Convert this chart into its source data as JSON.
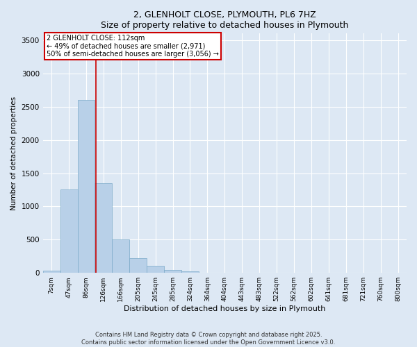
{
  "title_line1": "2, GLENHOLT CLOSE, PLYMOUTH, PL6 7HZ",
  "title_line2": "Size of property relative to detached houses in Plymouth",
  "xlabel": "Distribution of detached houses by size in Plymouth",
  "ylabel": "Number of detached properties",
  "bar_color": "#b8d0e8",
  "bar_edge_color": "#7aaac8",
  "background_color": "#dde8f4",
  "grid_color": "#ffffff",
  "annotation_box_color": "#cc0000",
  "vline_color": "#cc0000",
  "categories": [
    "7sqm",
    "47sqm",
    "86sqm",
    "126sqm",
    "166sqm",
    "205sqm",
    "245sqm",
    "285sqm",
    "324sqm",
    "364sqm",
    "404sqm",
    "443sqm",
    "483sqm",
    "522sqm",
    "562sqm",
    "602sqm",
    "641sqm",
    "681sqm",
    "721sqm",
    "760sqm",
    "800sqm"
  ],
  "values": [
    30,
    1250,
    2600,
    1350,
    500,
    220,
    110,
    45,
    20,
    5,
    5,
    5,
    0,
    0,
    0,
    0,
    0,
    0,
    0,
    0,
    0
  ],
  "ylim": [
    0,
    3600
  ],
  "yticks": [
    0,
    500,
    1000,
    1500,
    2000,
    2500,
    3000,
    3500
  ],
  "annotation_line1": "2 GLENHOLT CLOSE: 112sqm",
  "annotation_line2": "← 49% of detached houses are smaller (2,971)",
  "annotation_line3": "50% of semi-detached houses are larger (3,056) →",
  "vline_position": 2.55,
  "footer_line1": "Contains HM Land Registry data © Crown copyright and database right 2025.",
  "footer_line2": "Contains public sector information licensed under the Open Government Licence v3.0.",
  "fig_facecolor": "#dde8f4"
}
